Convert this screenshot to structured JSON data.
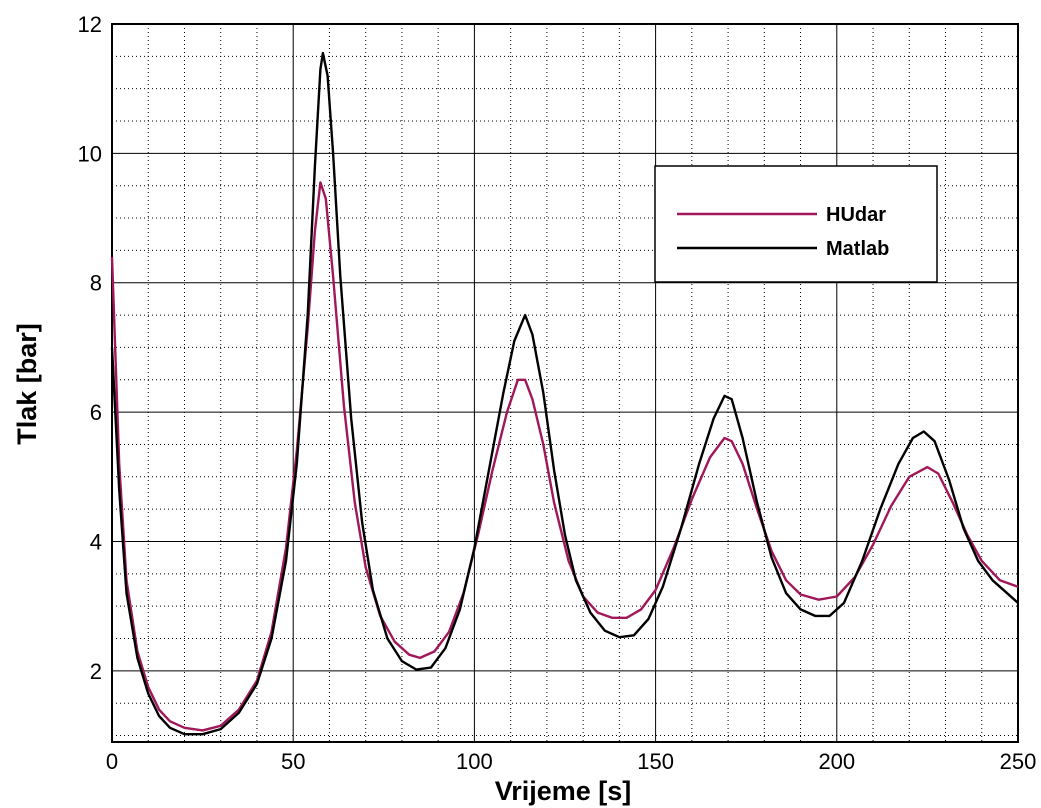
{
  "chart_data": {
    "type": "line",
    "title": "",
    "xlabel": "Vrijeme [s]",
    "ylabel": "Tlak [bar]",
    "xlim": [
      0,
      250
    ],
    "ylim": [
      0.9,
      12
    ],
    "xticks": [
      0,
      50,
      100,
      150,
      200,
      250
    ],
    "yticks": [
      2,
      4,
      6,
      8,
      10,
      12
    ],
    "xtick_labels": [
      "0",
      "50",
      "100",
      "150",
      "200",
      "250"
    ],
    "ytick_labels": [
      "2",
      "4",
      "6",
      "8",
      "10",
      "12"
    ],
    "grid": true,
    "legend_position": "upper-right",
    "series": [
      {
        "name": "HUdar",
        "color": "#a0185a",
        "points": [
          [
            0,
            8.4
          ],
          [
            2,
            5.2
          ],
          [
            4,
            3.4
          ],
          [
            7,
            2.3
          ],
          [
            10,
            1.75
          ],
          [
            13,
            1.4
          ],
          [
            16,
            1.22
          ],
          [
            20,
            1.12
          ],
          [
            25,
            1.08
          ],
          [
            30,
            1.15
          ],
          [
            35,
            1.4
          ],
          [
            40,
            1.85
          ],
          [
            44,
            2.6
          ],
          [
            48,
            3.9
          ],
          [
            51,
            5.4
          ],
          [
            54,
            7.3
          ],
          [
            56,
            8.8
          ],
          [
            57.5,
            9.55
          ],
          [
            59,
            9.3
          ],
          [
            61,
            8.1
          ],
          [
            64,
            6.1
          ],
          [
            67,
            4.6
          ],
          [
            70,
            3.6
          ],
          [
            74,
            2.85
          ],
          [
            78,
            2.45
          ],
          [
            82,
            2.25
          ],
          [
            85,
            2.2
          ],
          [
            89,
            2.3
          ],
          [
            93,
            2.6
          ],
          [
            97,
            3.2
          ],
          [
            101,
            4.1
          ],
          [
            105,
            5.1
          ],
          [
            109,
            6.0
          ],
          [
            112,
            6.5
          ],
          [
            114,
            6.5
          ],
          [
            116,
            6.2
          ],
          [
            119,
            5.5
          ],
          [
            122,
            4.6
          ],
          [
            126,
            3.7
          ],
          [
            130,
            3.15
          ],
          [
            134,
            2.9
          ],
          [
            138,
            2.82
          ],
          [
            142,
            2.82
          ],
          [
            146,
            2.95
          ],
          [
            150,
            3.25
          ],
          [
            155,
            3.9
          ],
          [
            160,
            4.65
          ],
          [
            165,
            5.3
          ],
          [
            169,
            5.6
          ],
          [
            171,
            5.55
          ],
          [
            174,
            5.2
          ],
          [
            178,
            4.5
          ],
          [
            182,
            3.85
          ],
          [
            186,
            3.4
          ],
          [
            190,
            3.18
          ],
          [
            195,
            3.1
          ],
          [
            200,
            3.15
          ],
          [
            205,
            3.45
          ],
          [
            210,
            3.95
          ],
          [
            215,
            4.55
          ],
          [
            220,
            5.0
          ],
          [
            225,
            5.15
          ],
          [
            228,
            5.05
          ],
          [
            232,
            4.6
          ],
          [
            236,
            4.1
          ],
          [
            240,
            3.7
          ],
          [
            245,
            3.4
          ],
          [
            250,
            3.3
          ]
        ]
      },
      {
        "name": "Matlab",
        "color": "#000000",
        "points": [
          [
            0,
            7.0
          ],
          [
            2,
            4.8
          ],
          [
            4,
            3.2
          ],
          [
            7,
            2.2
          ],
          [
            10,
            1.65
          ],
          [
            13,
            1.3
          ],
          [
            16,
            1.12
          ],
          [
            20,
            1.02
          ],
          [
            25,
            1.02
          ],
          [
            30,
            1.1
          ],
          [
            35,
            1.35
          ],
          [
            40,
            1.8
          ],
          [
            44,
            2.5
          ],
          [
            48,
            3.7
          ],
          [
            51,
            5.2
          ],
          [
            54,
            7.5
          ],
          [
            56,
            9.8
          ],
          [
            57.5,
            11.3
          ],
          [
            58.2,
            11.55
          ],
          [
            59.5,
            11.2
          ],
          [
            61,
            10.0
          ],
          [
            63,
            8.1
          ],
          [
            66,
            5.9
          ],
          [
            69,
            4.3
          ],
          [
            72,
            3.25
          ],
          [
            76,
            2.5
          ],
          [
            80,
            2.15
          ],
          [
            84,
            2.02
          ],
          [
            88,
            2.05
          ],
          [
            92,
            2.35
          ],
          [
            96,
            2.95
          ],
          [
            100,
            3.9
          ],
          [
            104,
            5.1
          ],
          [
            108,
            6.3
          ],
          [
            111,
            7.1
          ],
          [
            114,
            7.5
          ],
          [
            116,
            7.2
          ],
          [
            119,
            6.3
          ],
          [
            122,
            5.1
          ],
          [
            125,
            4.1
          ],
          [
            128,
            3.4
          ],
          [
            132,
            2.9
          ],
          [
            136,
            2.62
          ],
          [
            140,
            2.52
          ],
          [
            144,
            2.55
          ],
          [
            148,
            2.8
          ],
          [
            152,
            3.3
          ],
          [
            157,
            4.2
          ],
          [
            162,
            5.2
          ],
          [
            166,
            5.9
          ],
          [
            169,
            6.25
          ],
          [
            171,
            6.2
          ],
          [
            174,
            5.6
          ],
          [
            178,
            4.6
          ],
          [
            182,
            3.75
          ],
          [
            186,
            3.2
          ],
          [
            190,
            2.95
          ],
          [
            194,
            2.85
          ],
          [
            198,
            2.85
          ],
          [
            202,
            3.05
          ],
          [
            207,
            3.7
          ],
          [
            212,
            4.5
          ],
          [
            217,
            5.2
          ],
          [
            221,
            5.6
          ],
          [
            224,
            5.7
          ],
          [
            227,
            5.55
          ],
          [
            231,
            4.95
          ],
          [
            235,
            4.2
          ],
          [
            239,
            3.7
          ],
          [
            243,
            3.4
          ],
          [
            247,
            3.2
          ],
          [
            250,
            3.05
          ]
        ]
      }
    ]
  }
}
